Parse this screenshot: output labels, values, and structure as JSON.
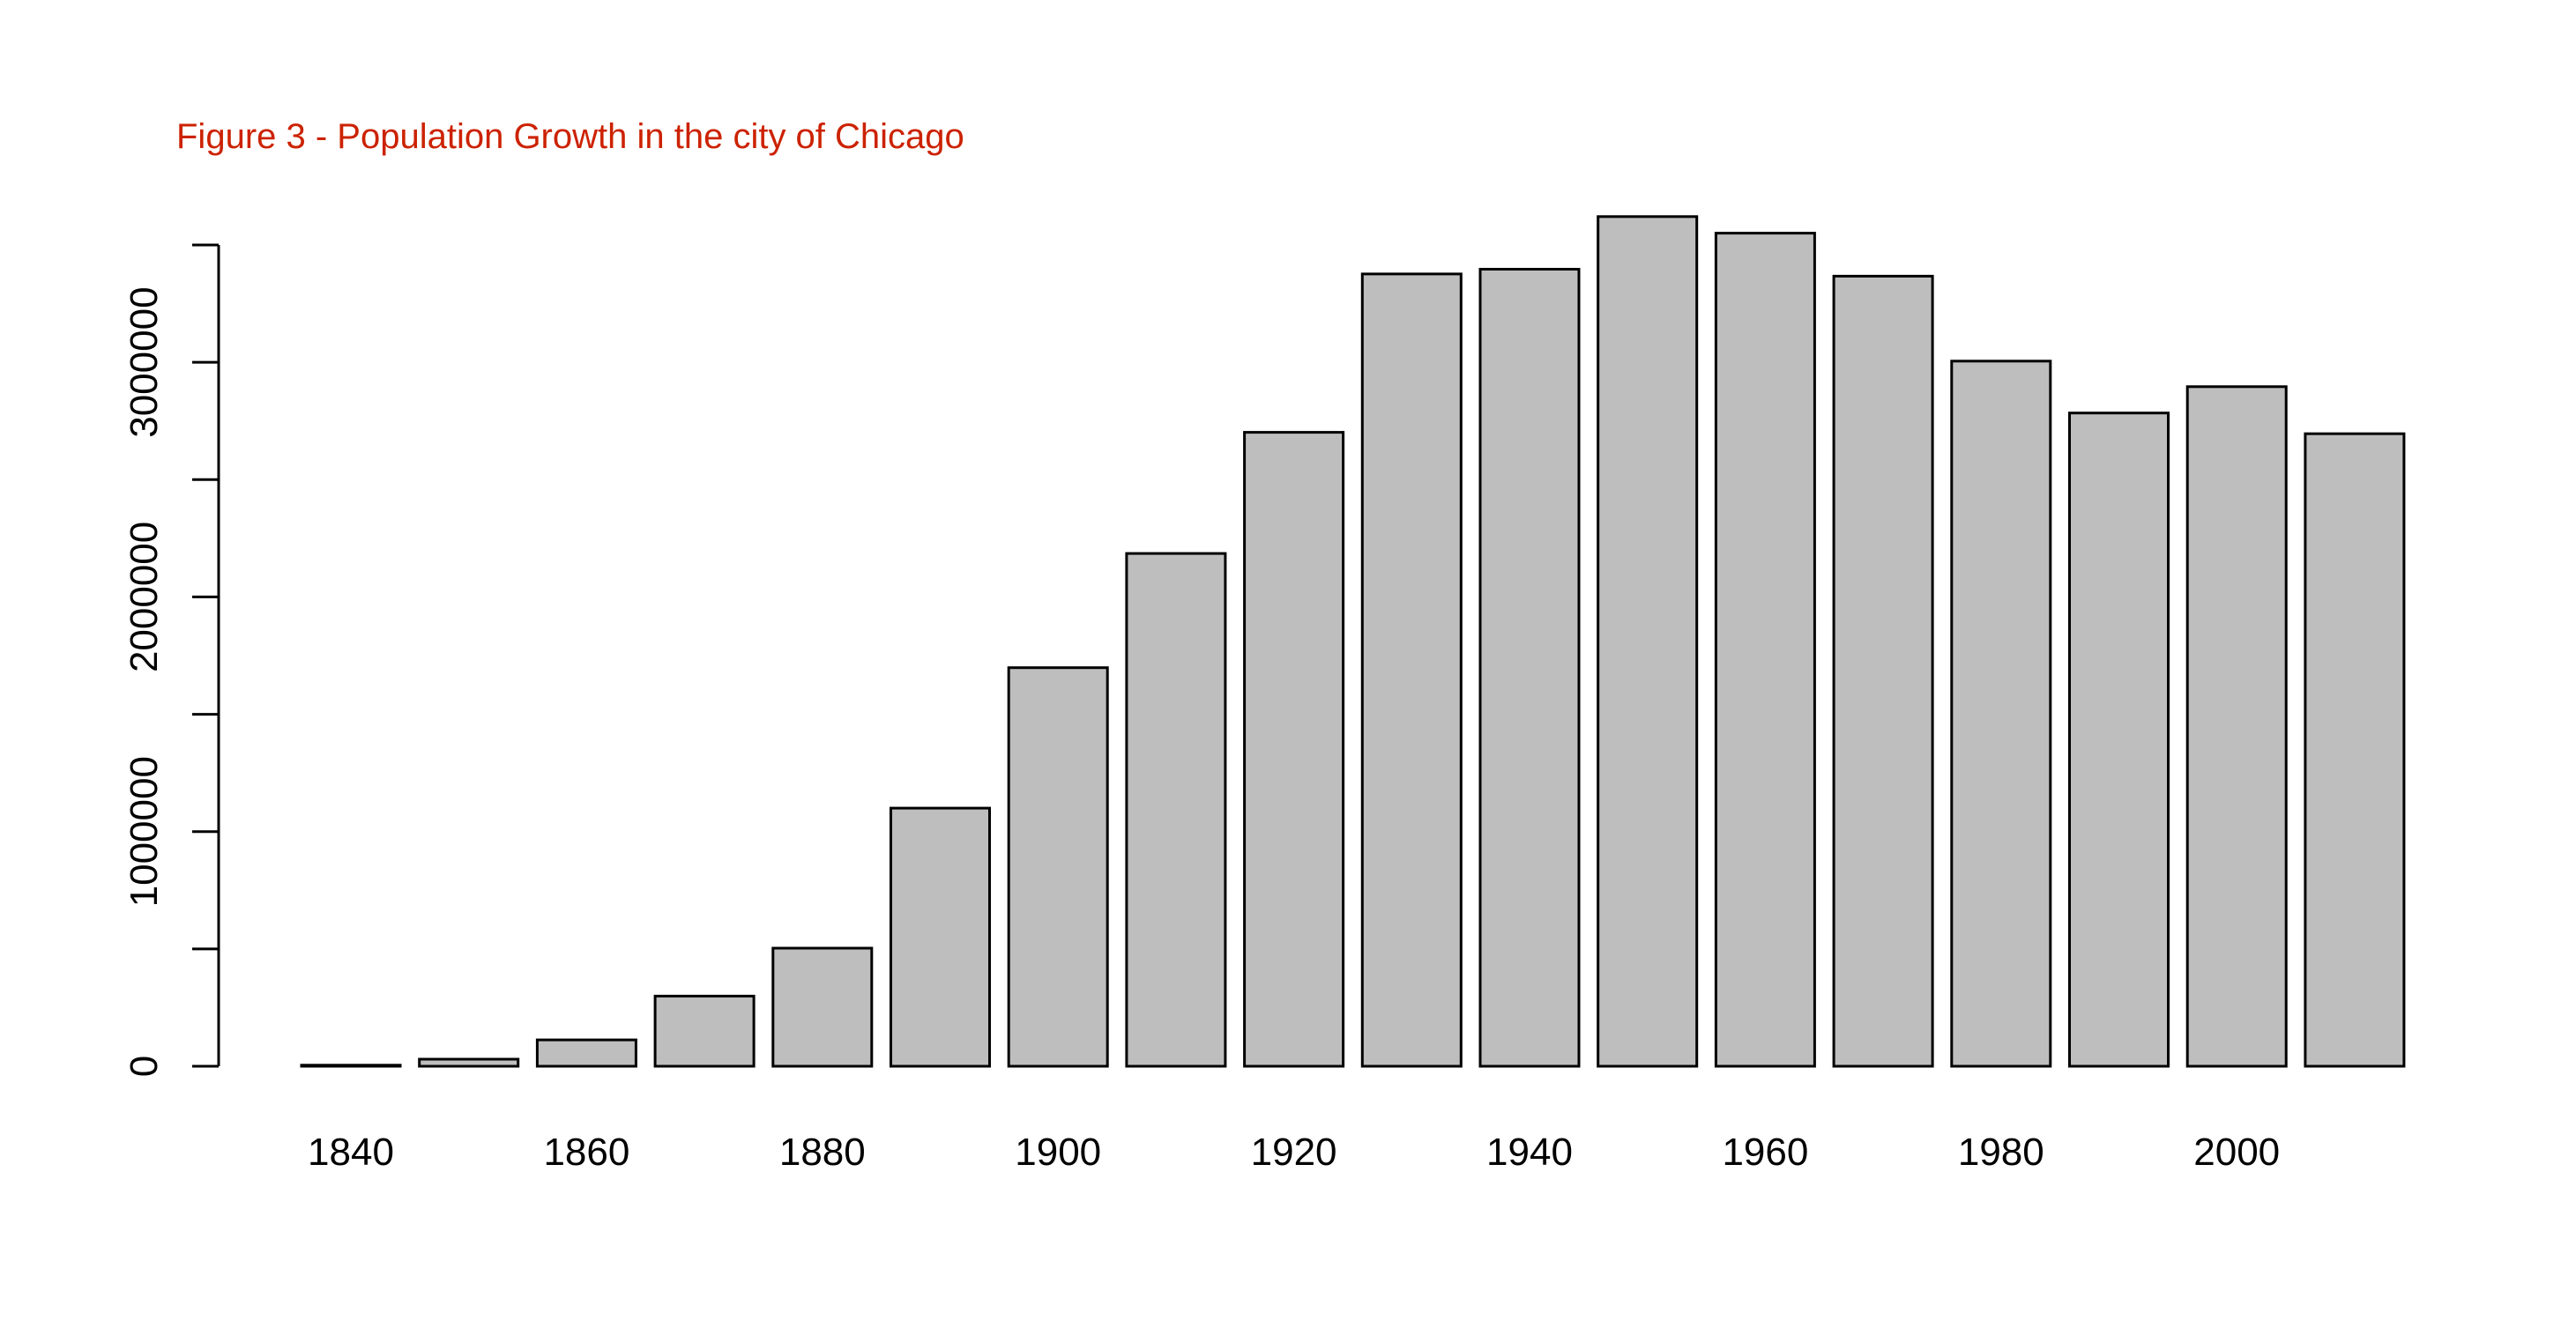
{
  "colors": {
    "title": "#cc2200",
    "bar_fill": "#bebebe",
    "bar_stroke": "#000000",
    "axis": "#000000"
  },
  "chart_data": {
    "type": "bar",
    "title": "Figure 3 - Population Growth in the city of Chicago",
    "xlabel": "",
    "ylabel": "",
    "categories": [
      "1840",
      "1850",
      "1860",
      "1870",
      "1880",
      "1890",
      "1900",
      "1910",
      "1920",
      "1930",
      "1940",
      "1950",
      "1960",
      "1970",
      "1980",
      "1990",
      "2000",
      "2010"
    ],
    "x_tick_labels": [
      "1840",
      "1860",
      "1880",
      "1900",
      "1920",
      "1940",
      "1960",
      "1980",
      "2000"
    ],
    "values": [
      4470,
      29963,
      112172,
      298977,
      503185,
      1099850,
      1698575,
      2185283,
      2701705,
      3376438,
      3396808,
      3620962,
      3550404,
      3366957,
      3005072,
      2783726,
      2896016,
      2695598
    ],
    "ylim": [
      0,
      3500000
    ],
    "y_major_ticks": [
      0,
      1000000,
      2000000,
      3000000
    ],
    "y_tick_labels": [
      "0",
      "1000000",
      "2000000",
      "3000000"
    ],
    "y_minor_ticks": [
      500000,
      1500000,
      2500000,
      3500000
    ],
    "grid": false,
    "legend": "none"
  }
}
